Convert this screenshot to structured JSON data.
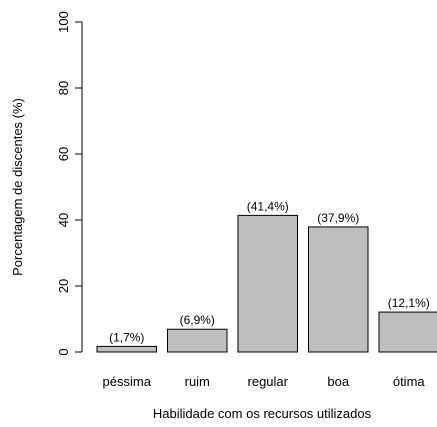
{
  "chart_data": {
    "type": "bar",
    "title": "",
    "xlabel": "Habilidade com os recursos utilizados",
    "ylabel": "Porcentagem de discentes (%)",
    "categories": [
      "péssima",
      "ruim",
      "regular",
      "boa",
      "ótima"
    ],
    "values": [
      1.7,
      6.9,
      41.4,
      37.9,
      12.1
    ],
    "data_labels": [
      "(1,7%)",
      "(6,9%)",
      "(41,4%)",
      "(37,9%)",
      "(12,1%)"
    ],
    "ylim": [
      0,
      100
    ],
    "yticks": [
      0,
      20,
      40,
      60,
      80,
      100
    ],
    "ytick_labels": [
      "0",
      "20",
      "40",
      "60",
      "80",
      "100"
    ],
    "grid": false,
    "legend": "none",
    "colors": {
      "bar_fill": "#bebebe",
      "bar_stroke": "#000000"
    }
  }
}
